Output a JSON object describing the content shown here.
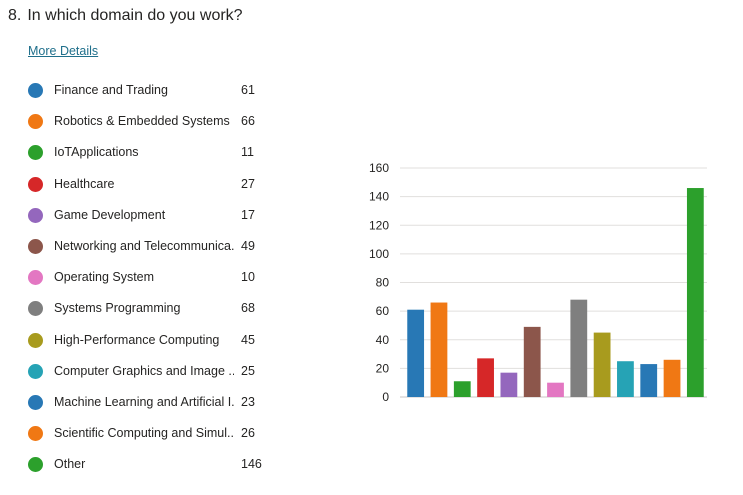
{
  "question": {
    "number": "8.",
    "title": "In which domain do you work?"
  },
  "more_details_label": "More Details",
  "legend": [
    {
      "label": "Finance and Trading",
      "count": "61",
      "color": "#2878b5"
    },
    {
      "label": "Robotics & Embedded Systems",
      "count": "66",
      "color": "#f07814"
    },
    {
      "label": "IoTApplications",
      "count": "11",
      "color": "#2ca02c"
    },
    {
      "label": "Healthcare",
      "count": "27",
      "color": "#d62728"
    },
    {
      "label": "Game Development",
      "count": "17",
      "color": "#9467bd"
    },
    {
      "label": "Networking and Telecommunica...",
      "count": "49",
      "color": "#8c564b"
    },
    {
      "label": "Operating System",
      "count": "10",
      "color": "#e377c2"
    },
    {
      "label": "Systems Programming",
      "count": "68",
      "color": "#7f7f7f"
    },
    {
      "label": "High-Performance Computing",
      "count": "45",
      "color": "#a89b1e"
    },
    {
      "label": "Computer Graphics and Image ...",
      "count": "25",
      "color": "#26a3b5"
    },
    {
      "label": "Machine Learning and Artificial I...",
      "count": "23",
      "color": "#2878b5"
    },
    {
      "label": "Scientific Computing and Simul...",
      "count": "26",
      "color": "#f07814"
    },
    {
      "label": "Other",
      "count": "146",
      "color": "#2ca02c"
    }
  ],
  "chart_data": {
    "type": "bar",
    "values": [
      61,
      66,
      11,
      27,
      17,
      49,
      10,
      68,
      45,
      25,
      23,
      26,
      146
    ],
    "colors": [
      "#2878b5",
      "#f07814",
      "#2ca02c",
      "#d62728",
      "#9467bd",
      "#8c564b",
      "#e377c2",
      "#7f7f7f",
      "#a89b1e",
      "#26a3b5",
      "#2878b5",
      "#f07814",
      "#2ca02c"
    ],
    "ylim": [
      0,
      160
    ],
    "yticks": [
      "0",
      "20",
      "40",
      "60",
      "80",
      "100",
      "120",
      "140",
      "160"
    ],
    "grid": true,
    "legend_position": "left"
  }
}
